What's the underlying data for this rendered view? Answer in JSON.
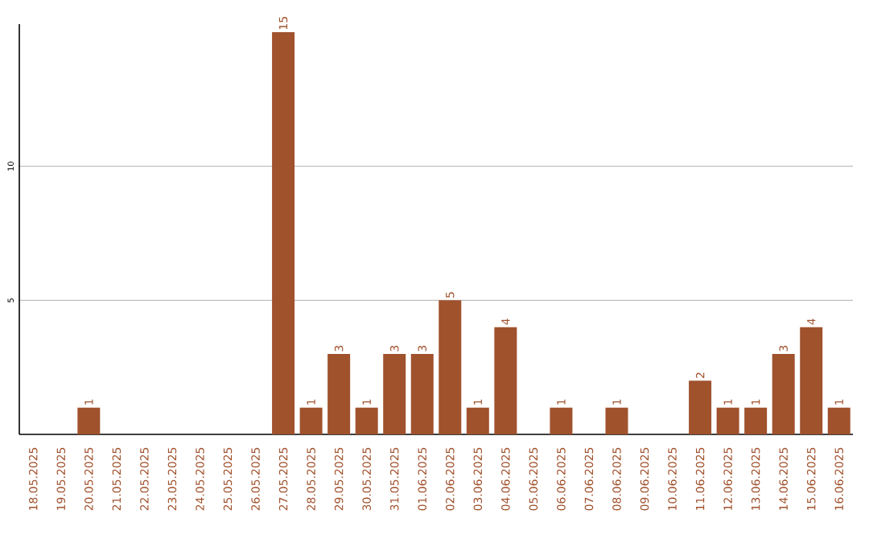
{
  "chart_data": {
    "type": "bar",
    "categories": [
      "18.05.2025",
      "19.05.2025",
      "20.05.2025",
      "21.05.2025",
      "22.05.2025",
      "23.05.2025",
      "24.05.2025",
      "25.05.2025",
      "26.05.2025",
      "27.05.2025",
      "28.05.2025",
      "29.05.2025",
      "30.05.2025",
      "31.05.2025",
      "01.06.2025",
      "02.06.2025",
      "03.06.2025",
      "04.06.2025",
      "05.06.2025",
      "06.06.2025",
      "07.06.2025",
      "08.06.2025",
      "09.06.2025",
      "10.06.2025",
      "11.06.2025",
      "12.06.2025",
      "13.06.2025",
      "14.06.2025",
      "15.06.2025",
      "16.06.2025"
    ],
    "values": [
      0,
      0,
      1,
      0,
      0,
      0,
      0,
      0,
      0,
      15,
      1,
      3,
      1,
      3,
      3,
      5,
      1,
      4,
      0,
      1,
      0,
      1,
      0,
      0,
      2,
      1,
      1,
      3,
      4,
      1
    ],
    "value_labels": [
      null,
      null,
      "1",
      null,
      null,
      null,
      null,
      null,
      null,
      "15",
      "1",
      "3",
      "1",
      "3",
      "3",
      "5",
      "1",
      "4",
      null,
      "1",
      null,
      "1",
      null,
      null,
      "2",
      "1",
      "1",
      "3",
      "4",
      "1"
    ],
    "color": "#a0522d",
    "ylim": [
      0,
      15.3
    ],
    "yticks": [
      5,
      10
    ],
    "grid": "y"
  }
}
